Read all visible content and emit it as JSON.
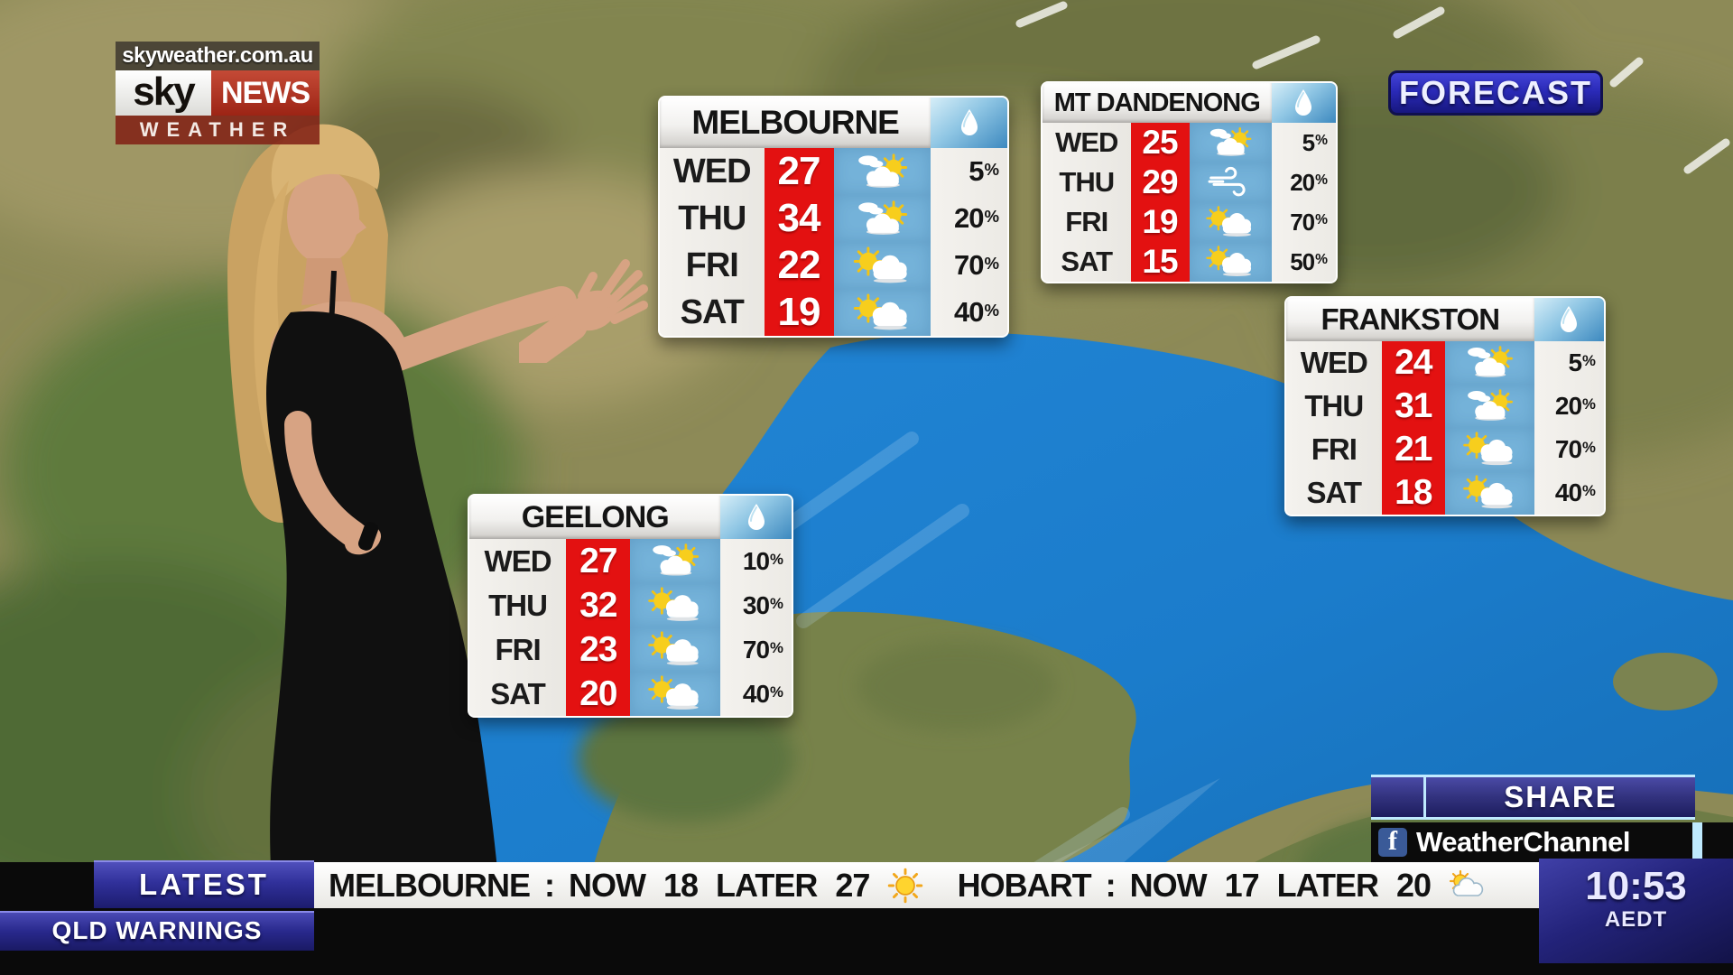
{
  "branding": {
    "url": "skyweather.com.au",
    "sky": "sky",
    "news": "NEWS",
    "weather": "WEATHER"
  },
  "banner": {
    "label": "FORECAST"
  },
  "tables": [
    {
      "title": "MELBOURNE",
      "rows": [
        {
          "day": "WED",
          "temp": "27",
          "icon": "cloud-sun",
          "chance": "5%"
        },
        {
          "day": "THU",
          "temp": "34",
          "icon": "cloud-sun",
          "chance": "20%"
        },
        {
          "day": "FRI",
          "temp": "22",
          "icon": "sun-cloud",
          "chance": "70%"
        },
        {
          "day": "SAT",
          "temp": "19",
          "icon": "sun-cloud",
          "chance": "40%"
        }
      ]
    },
    {
      "title": "MT DANDENONG",
      "rows": [
        {
          "day": "WED",
          "temp": "25",
          "icon": "cloud-sun",
          "chance": "5%"
        },
        {
          "day": "THU",
          "temp": "29",
          "icon": "windy",
          "chance": "20%"
        },
        {
          "day": "FRI",
          "temp": "19",
          "icon": "sun-cloud",
          "chance": "70%"
        },
        {
          "day": "SAT",
          "temp": "15",
          "icon": "sun-cloud",
          "chance": "50%"
        }
      ]
    },
    {
      "title": "FRANKSTON",
      "rows": [
        {
          "day": "WED",
          "temp": "24",
          "icon": "cloud-sun",
          "chance": "5%"
        },
        {
          "day": "THU",
          "temp": "31",
          "icon": "cloud-sun",
          "chance": "20%"
        },
        {
          "day": "FRI",
          "temp": "21",
          "icon": "sun-cloud",
          "chance": "70%"
        },
        {
          "day": "SAT",
          "temp": "18",
          "icon": "sun-cloud",
          "chance": "40%"
        }
      ]
    },
    {
      "title": "GEELONG",
      "rows": [
        {
          "day": "WED",
          "temp": "27",
          "icon": "cloud-sun",
          "chance": "10%"
        },
        {
          "day": "THU",
          "temp": "32",
          "icon": "sun-cloud",
          "chance": "30%"
        },
        {
          "day": "FRI",
          "temp": "23",
          "icon": "sun-cloud",
          "chance": "70%"
        },
        {
          "day": "SAT",
          "temp": "20",
          "icon": "sun-cloud",
          "chance": "40%"
        }
      ]
    }
  ],
  "share": {
    "label": "SHARE",
    "facebook_glyph": "f",
    "facebook_handle": "WeatherChannel"
  },
  "ticker": {
    "latest": "LATEST",
    "warnings": "QLD WARNINGS",
    "separator": ":",
    "now_label": "NOW",
    "later_label": "LATER",
    "items": [
      {
        "city": "MELBOURNE",
        "now": "18",
        "later": "27",
        "icon": "sunny"
      },
      {
        "city": "HOBART",
        "now": "17",
        "later": "20",
        "icon": "partly-cloudy"
      }
    ],
    "clock": {
      "time": "10:53",
      "zone": "AEDT"
    }
  },
  "colors": {
    "temp_red": "#e31111",
    "icon_column_blue": "#74b2d9",
    "banner_blue": "#2a2ab8",
    "ticker_blue": "#30309a",
    "bay_blue": "#1b7ccb",
    "facebook_blue": "#3a5a98",
    "cyan_accent": "#bfeaff"
  }
}
